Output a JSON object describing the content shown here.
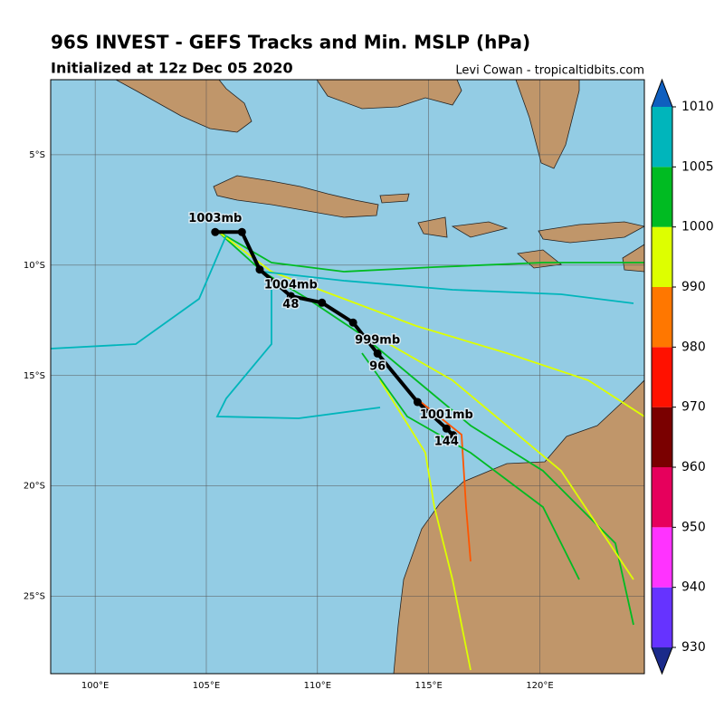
{
  "header": {
    "title": "96S INVEST - GEFS Tracks and Min. MSLP (hPa)",
    "subtitle": "Initialized at 12z Dec 05 2020",
    "credit": "Levi Cowan - tropicaltidbits.com"
  },
  "map": {
    "xlim": [
      98,
      124.7
    ],
    "ylim": [
      -28.5,
      -1.6
    ],
    "xticks": [
      {
        "value": 100,
        "label": "100°E"
      },
      {
        "value": 105,
        "label": "105°E"
      },
      {
        "value": 110,
        "label": "110°E"
      },
      {
        "value": 115,
        "label": "115°E"
      },
      {
        "value": 120,
        "label": "120°E"
      }
    ],
    "yticks": [
      {
        "value": -5,
        "label": "5°S"
      },
      {
        "value": -10,
        "label": "10°S"
      },
      {
        "value": -15,
        "label": "15°S"
      },
      {
        "value": -20,
        "label": "20°S"
      },
      {
        "value": -25,
        "label": "25°S"
      }
    ],
    "grid": true
  },
  "mean_track": {
    "color": "#000000",
    "lon": [
      105.4,
      106.6,
      107.4,
      108.8,
      110.2,
      111.6,
      112.7,
      114.5,
      115.8,
      116.1
    ],
    "lat": [
      -8.5,
      -8.5,
      -10.2,
      -11.4,
      -11.7,
      -12.6,
      -14.0,
      -16.2,
      -17.4,
      -17.7
    ],
    "labels": [
      {
        "text": "1003mb",
        "lon": 105.4,
        "lat": -7.9
      },
      {
        "text": "1004mb",
        "lon": 108.8,
        "lat": -10.9
      },
      {
        "text": "48",
        "lon": 108.8,
        "lat": -11.8
      },
      {
        "text": "999mb",
        "lon": 112.7,
        "lat": -13.4
      },
      {
        "text": "96",
        "lon": 112.7,
        "lat": -14.6
      },
      {
        "text": "1001mb",
        "lon": 115.8,
        "lat": -16.8
      },
      {
        "text": "144",
        "lon": 115.8,
        "lat": -18.0
      }
    ]
  },
  "colorbar": {
    "levels": [
      930,
      940,
      950,
      960,
      970,
      980,
      990,
      1000,
      1005,
      1010
    ],
    "colors": [
      "#6633ff",
      "#ff33ff",
      "#e6005c",
      "#7a0000",
      "#ff1100",
      "#ff7700",
      "#ddff00",
      "#00bb22",
      "#00b5bb"
    ],
    "under_color": "#1a2a8a",
    "over_color": "#0f5fbf"
  }
}
